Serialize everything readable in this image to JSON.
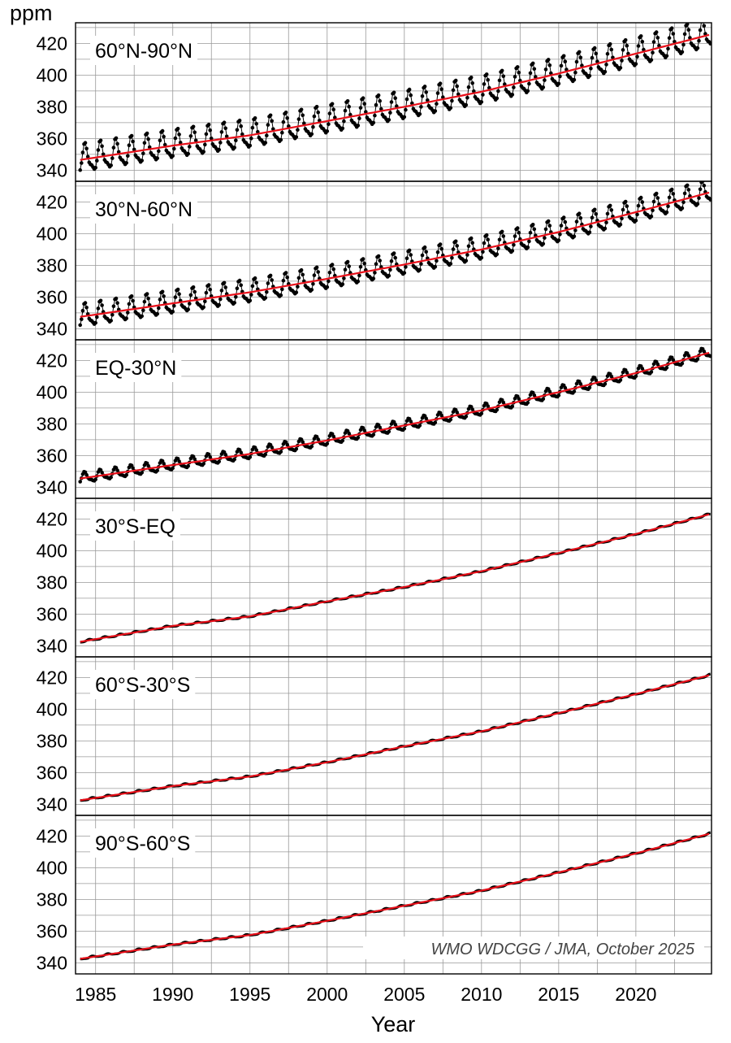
{
  "chart_data": {
    "type": "line",
    "ylabel": "ppm",
    "xlabel": "Year",
    "xlim": [
      1983.7,
      2024.9
    ],
    "ylim": [
      333,
      433
    ],
    "x_ticks": [
      1985,
      1990,
      1995,
      2000,
      2005,
      2010,
      2015,
      2020
    ],
    "y_ticks": [
      340,
      360,
      380,
      400,
      420
    ],
    "grid": true,
    "credit": "WMO WDCGG / JMA, October 2025",
    "colors": {
      "monthly": "#000000",
      "deseasonalized": "#e8101a",
      "grid": "#999999"
    },
    "series_kinds": [
      "monthly mean (black dots)",
      "deseasonalized trend (red line)"
    ],
    "panels": [
      {
        "label": "60°N-90°N",
        "trend_x": [
          1984,
          1990,
          1995,
          2000,
          2005,
          2010,
          2015,
          2020,
          2024.8
        ],
        "trend_y": [
          346.5,
          355.5,
          362,
          371,
          380,
          389.5,
          401,
          413.5,
          425.5
        ],
        "seasonal_amplitude": 16,
        "peak_phase": 0.33
      },
      {
        "label": "30°N-60°N",
        "trend_x": [
          1984,
          1990,
          1995,
          2000,
          2005,
          2010,
          2015,
          2020,
          2024.8
        ],
        "trend_y": [
          347.5,
          356,
          363,
          371.5,
          380.5,
          390,
          401,
          413.5,
          426
        ],
        "seasonal_amplitude": 13,
        "peak_phase": 0.33
      },
      {
        "label": "EQ-30°N",
        "trend_x": [
          1984,
          1990,
          1995,
          2000,
          2005,
          2010,
          2015,
          2020,
          2024.8
        ],
        "trend_y": [
          345.5,
          354,
          361,
          369.5,
          379,
          388.5,
          400,
          412,
          425
        ],
        "seasonal_amplitude": 6,
        "peak_phase": 0.3
      },
      {
        "label": "30°S-EQ",
        "trend_x": [
          1984,
          1990,
          1995,
          2000,
          2005,
          2010,
          2015,
          2020,
          2024.8
        ],
        "trend_y": [
          342.5,
          352.5,
          358.5,
          368,
          377,
          387,
          398.5,
          410.5,
          423
        ],
        "seasonal_amplitude": 1,
        "peak_phase": 0.6
      },
      {
        "label": "60°S-30°S",
        "trend_x": [
          1984,
          1990,
          1995,
          2000,
          2005,
          2010,
          2015,
          2020,
          2024.8
        ],
        "trend_y": [
          342.5,
          351.5,
          357.5,
          366.5,
          376.5,
          386,
          397.5,
          409.5,
          421.5
        ],
        "seasonal_amplitude": 1,
        "peak_phase": 0.8
      },
      {
        "label": "90°S-60°S",
        "trend_x": [
          1984,
          1990,
          1995,
          2000,
          2005,
          2010,
          2015,
          2020,
          2024.8
        ],
        "trend_y": [
          342.5,
          351.5,
          357.5,
          366.5,
          376,
          385.5,
          397,
          409,
          421.5
        ],
        "seasonal_amplitude": 1,
        "peak_phase": 0.8
      }
    ]
  }
}
